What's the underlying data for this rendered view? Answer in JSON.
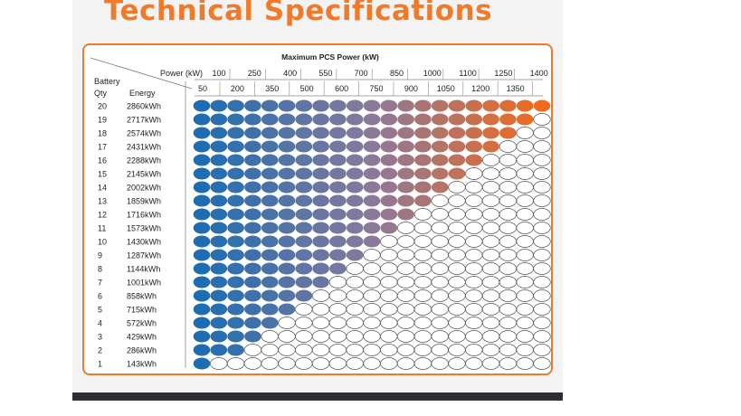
{
  "page": {
    "title": "Technical Specifications"
  },
  "table": {
    "header_title": "Maximum PCS Power (kW)",
    "power_label": "Power (kW)",
    "battery_label": "Battery",
    "qty_label": "Qty",
    "energy_label": "Energy",
    "power_upper": [
      "100",
      "250",
      "400",
      "550",
      "700",
      "850",
      "1000",
      "1100",
      "1250",
      "1400"
    ],
    "power_lower": [
      "50",
      "200",
      "350",
      "500",
      "600",
      "750",
      "900",
      "1050",
      "1200",
      "1350"
    ],
    "rows": [
      {
        "qty": "20",
        "energy": "2860kWh",
        "filled": 21
      },
      {
        "qty": "19",
        "energy": "2717kWh",
        "filled": 20
      },
      {
        "qty": "18",
        "energy": "2574kWh",
        "filled": 19
      },
      {
        "qty": "17",
        "energy": "2431kWh",
        "filled": 18
      },
      {
        "qty": "16",
        "energy": "2288kWh",
        "filled": 17
      },
      {
        "qty": "15",
        "energy": "2145kWh",
        "filled": 16
      },
      {
        "qty": "14",
        "energy": "2002kWh",
        "filled": 15
      },
      {
        "qty": "13",
        "energy": "1859kWh",
        "filled": 14
      },
      {
        "qty": "12",
        "energy": "1716kWh",
        "filled": 13
      },
      {
        "qty": "11",
        "energy": "1573kWh",
        "filled": 12
      },
      {
        "qty": "10",
        "energy": "1430kWh",
        "filled": 11
      },
      {
        "qty": "9",
        "energy": "1287kWh",
        "filled": 10
      },
      {
        "qty": "8",
        "energy": "1144kWh",
        "filled": 9
      },
      {
        "qty": "7",
        "energy": "1001kWh",
        "filled": 8
      },
      {
        "qty": "6",
        "energy": "858kWh",
        "filled": 7
      },
      {
        "qty": "5",
        "energy": "715kWh",
        "filled": 6
      },
      {
        "qty": "4",
        "energy": "572kWh",
        "filled": 5
      },
      {
        "qty": "3",
        "energy": "429kWh",
        "filled": 4
      },
      {
        "qty": "2",
        "energy": "286kWh",
        "filled": 3
      },
      {
        "qty": "1",
        "energy": "143kWh",
        "filled": 1
      }
    ],
    "total_columns": 21,
    "colors": {
      "accent": "#f07a2a",
      "gradient_start": "#1e6db0",
      "gradient_mid": "#8a7a9a",
      "gradient_end": "#f26a1b",
      "empty_fill": "#ffffff",
      "empty_stroke": "#555555"
    }
  }
}
